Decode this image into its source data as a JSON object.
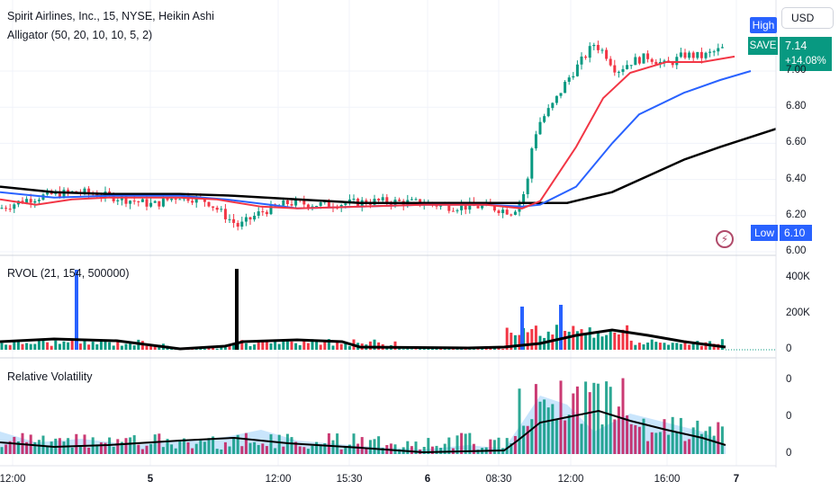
{
  "header": {
    "title": "Spirit Airlines, Inc., 15, NYSE, Heikin Ashi",
    "indicator": "Alligator (50, 20, 10, 10, 5, 2)"
  },
  "currency_button": "USD",
  "tags": {
    "high": "High",
    "save": "SAVE",
    "last_price": "7.14",
    "change": "+14.08%",
    "low": "Low",
    "low_value": "6.10"
  },
  "panes": {
    "rvol_label": "RVOL (21, 154, 500000)",
    "relvol_label": "Relative Volatility"
  },
  "colors": {
    "up": "#089981",
    "down": "#f23645",
    "alligator_jaw": "#000000",
    "alligator_teeth": "#2962ff",
    "alligator_lips": "#f23645",
    "highlight": "#2962ff",
    "bolt_icon": "#b04a6a"
  },
  "icons": [
    "lightning-icon"
  ],
  "chart_data": [
    {
      "type": "candlestick",
      "style": "Heikin Ashi",
      "y_ticks": [
        "7.00",
        "6.80",
        "6.60",
        "6.40",
        "6.20",
        "6.00"
      ],
      "ylim": [
        6.0,
        7.2
      ],
      "x_ticks": [
        "12:00",
        "5",
        "12:00",
        "15:30",
        "6",
        "08:30",
        "12:00",
        "16:00",
        "7"
      ],
      "series": [
        {
          "name": "Jaw",
          "color": "#000000",
          "points": [
            [
              0,
              6.36
            ],
            [
              60,
              6.33
            ],
            [
              120,
              6.32
            ],
            [
              200,
              6.32
            ],
            [
              260,
              6.31
            ],
            [
              330,
              6.29
            ],
            [
              400,
              6.27
            ],
            [
              470,
              6.27
            ],
            [
              540,
              6.27
            ],
            [
              580,
              6.27
            ],
            [
              630,
              6.27
            ],
            [
              680,
              6.33
            ],
            [
              720,
              6.42
            ],
            [
              760,
              6.51
            ],
            [
              800,
              6.58
            ],
            [
              862,
              6.68
            ]
          ]
        },
        {
          "name": "Teeth",
          "color": "#2962ff",
          "points": [
            [
              0,
              6.33
            ],
            [
              60,
              6.3
            ],
            [
              120,
              6.31
            ],
            [
              200,
              6.31
            ],
            [
              250,
              6.29
            ],
            [
              300,
              6.26
            ],
            [
              330,
              6.24
            ],
            [
              400,
              6.25
            ],
            [
              470,
              6.26
            ],
            [
              540,
              6.26
            ],
            [
              580,
              6.25
            ],
            [
              600,
              6.26
            ],
            [
              640,
              6.36
            ],
            [
              680,
              6.6
            ],
            [
              710,
              6.76
            ],
            [
              760,
              6.88
            ],
            [
              800,
              6.95
            ],
            [
              834,
              7.0
            ]
          ]
        },
        {
          "name": "Lips",
          "color": "#f23645",
          "points": [
            [
              0,
              6.29
            ],
            [
              40,
              6.26
            ],
            [
              80,
              6.29
            ],
            [
              120,
              6.3
            ],
            [
              200,
              6.3
            ],
            [
              240,
              6.29
            ],
            [
              290,
              6.25
            ],
            [
              330,
              6.24
            ],
            [
              400,
              6.25
            ],
            [
              470,
              6.26
            ],
            [
              540,
              6.26
            ],
            [
              580,
              6.24
            ],
            [
              600,
              6.28
            ],
            [
              640,
              6.58
            ],
            [
              670,
              6.85
            ],
            [
              700,
              6.99
            ],
            [
              740,
              7.05
            ],
            [
              780,
              7.05
            ],
            [
              816,
              7.08
            ]
          ]
        }
      ],
      "low_marker": 6.1
    },
    {
      "type": "bar",
      "name": "RVOL (21, 154, 500000)",
      "y_ticks": [
        "400K",
        "200K",
        "0"
      ],
      "ylim": [
        0,
        450000
      ],
      "spikes": [
        {
          "x_position": "early 5th",
          "value": 445000,
          "color": "#2962ff"
        },
        {
          "x_position": "midday 5th",
          "value": 450000,
          "color": "#000000"
        },
        {
          "x_position": "08:30 6th",
          "value": 240000,
          "color": "#2962ff"
        },
        {
          "x_position": "10:00 6th",
          "value": 250000,
          "color": "#2962ff"
        }
      ]
    },
    {
      "type": "bar",
      "name": "Relative Volatility",
      "y_ticks": [
        "0",
        "0",
        "0"
      ],
      "ylim": [
        0,
        100
      ]
    }
  ]
}
